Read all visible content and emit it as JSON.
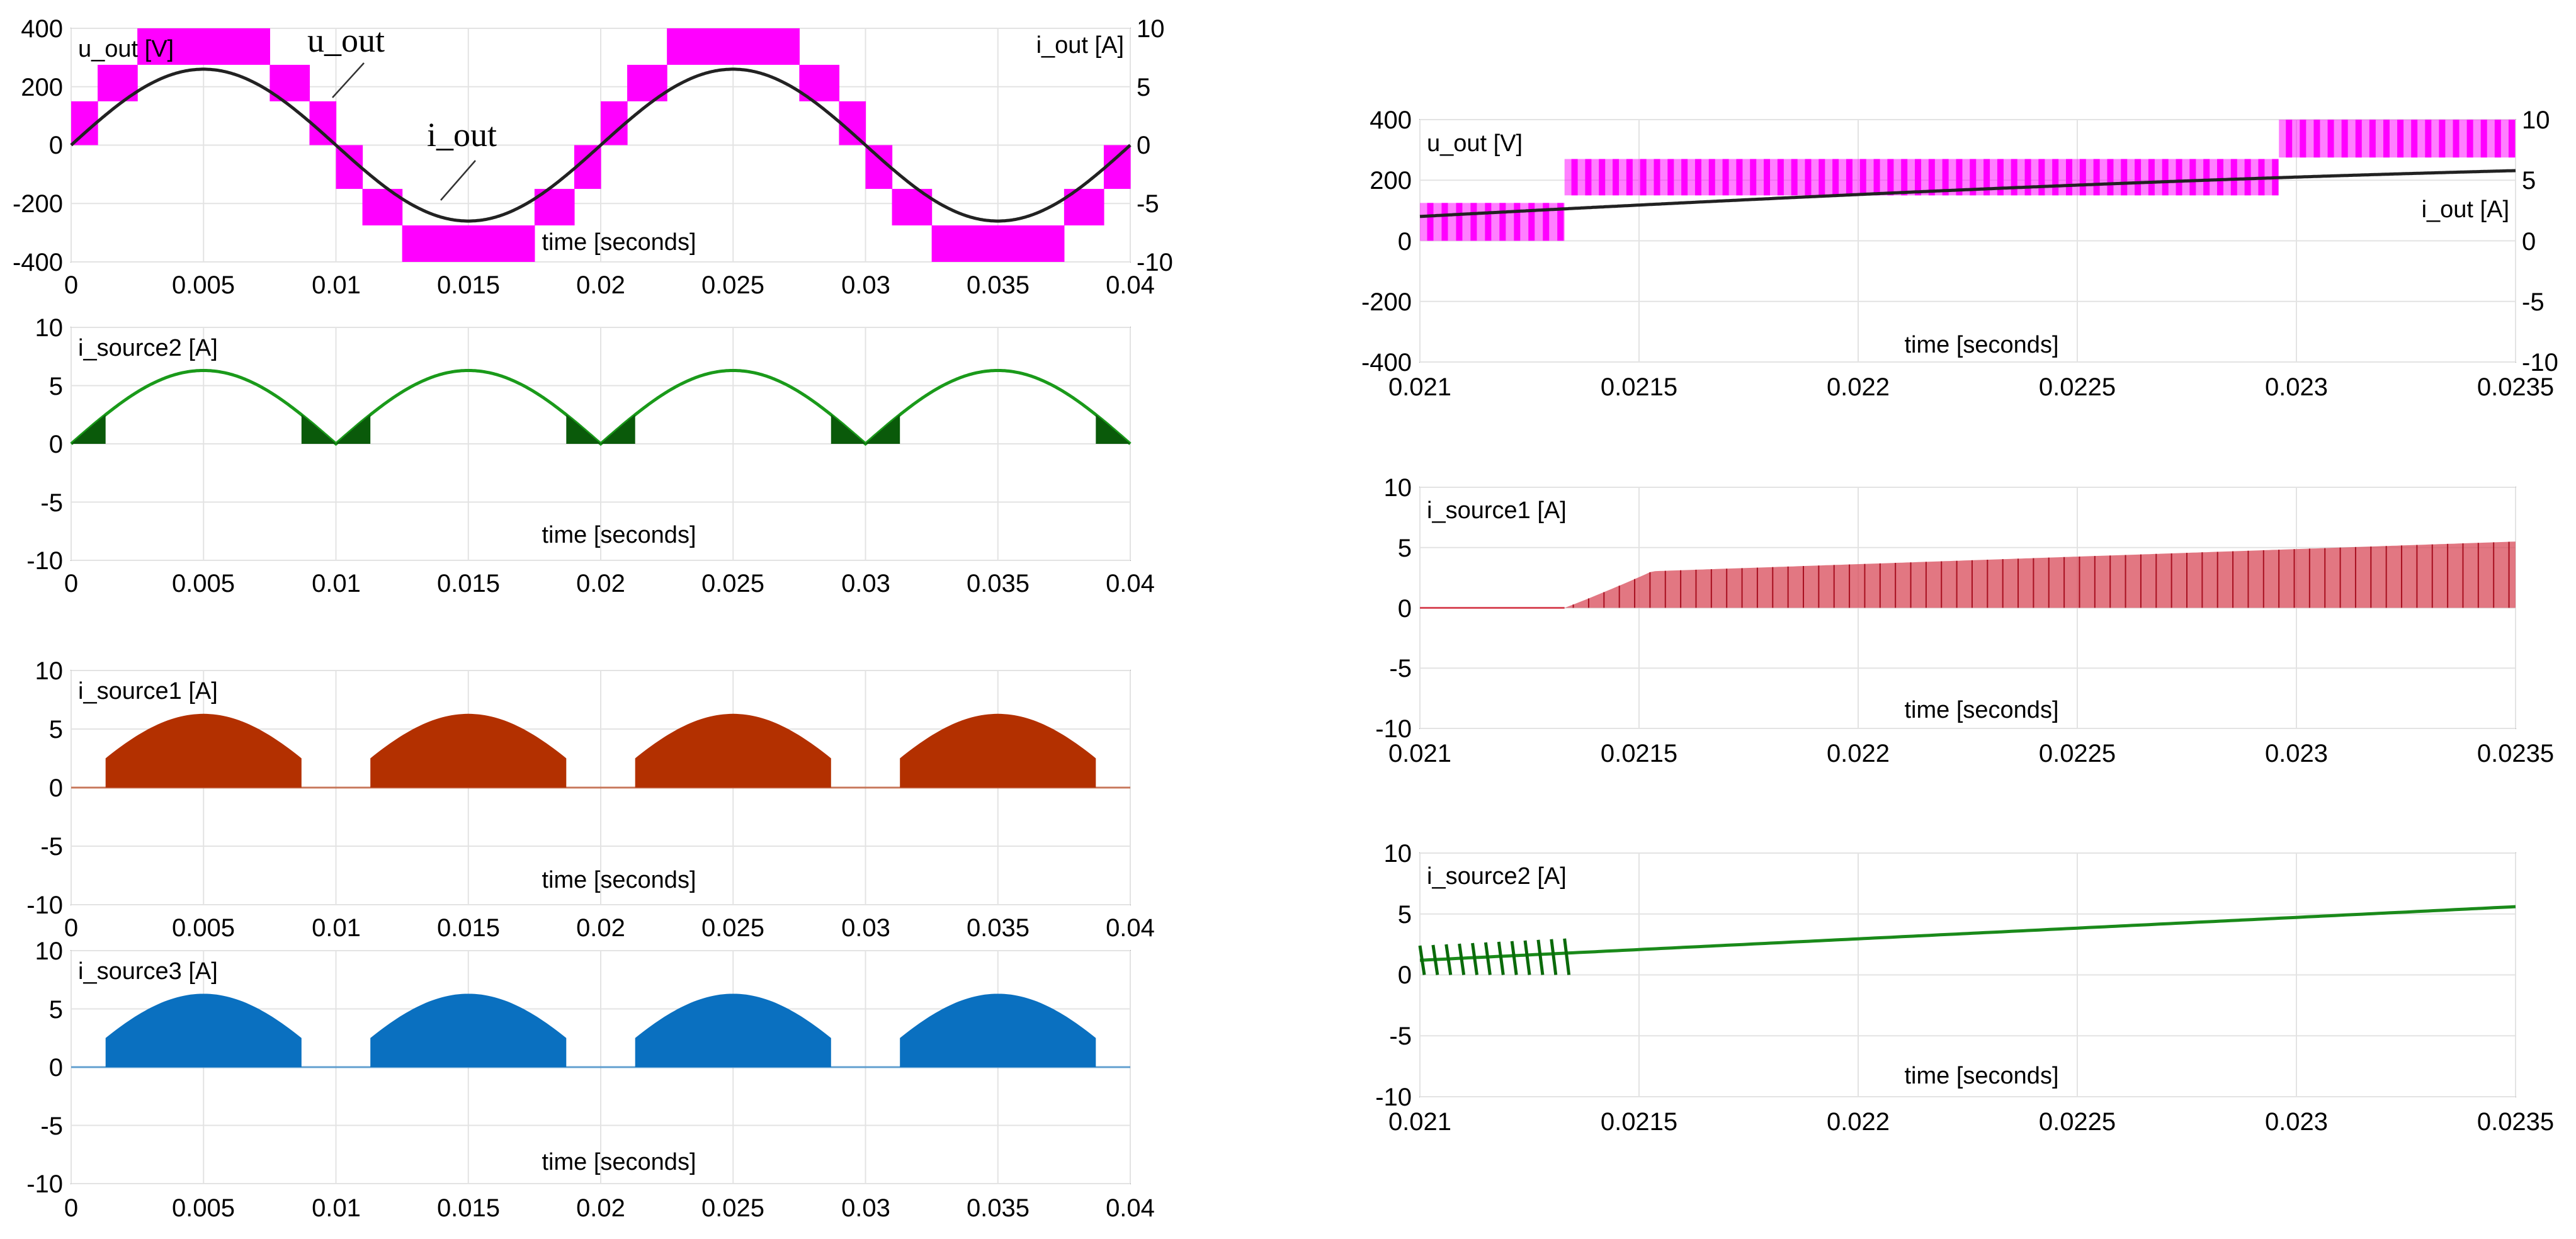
{
  "chart_data": [
    {
      "id": "p1",
      "type": "line",
      "x_domain": [
        0,
        0.04
      ],
      "ylim": [
        -400,
        400
      ],
      "yticks": [
        -400,
        -200,
        0,
        200,
        400
      ],
      "ylim_right": [
        -10,
        10
      ],
      "yticks_right": [
        -10,
        -5,
        0,
        5,
        10
      ],
      "xticks": [
        "0",
        "0.005",
        "0.01",
        "0.015",
        "0.02",
        "0.025",
        "0.03",
        "0.035",
        "0.04"
      ],
      "ylabel": "u_out [V]",
      "ylabel_right": "i_out [A]",
      "xlabel": "time [seconds]",
      "annotations": [
        "u_out",
        "i_out"
      ],
      "series": [
        {
          "name": "u_out",
          "color": "#ff00ff",
          "style": "staircase",
          "frequency_hz": 50,
          "levels_v": [
            -400,
            -275,
            -150,
            0,
            150,
            275,
            400
          ]
        },
        {
          "name": "i_out",
          "color": "#222222",
          "style": "sine",
          "amplitude_a": 6.5,
          "frequency_hz": 50
        }
      ]
    },
    {
      "id": "p2",
      "type": "line",
      "x_domain": [
        0,
        0.04
      ],
      "ylim": [
        -10,
        10
      ],
      "yticks": [
        -10,
        -5,
        0,
        5,
        10
      ],
      "xticks": [
        "0",
        "0.005",
        "0.01",
        "0.015",
        "0.02",
        "0.025",
        "0.03",
        "0.035",
        "0.04"
      ],
      "ylabel": "i_source2 [A]",
      "xlabel": "time [seconds]",
      "series": [
        {
          "name": "i_source2",
          "color": "#1a9a1a",
          "style": "abs_sine",
          "amplitude_a": 6.3,
          "frequency_hz": 50
        }
      ]
    },
    {
      "id": "p3",
      "type": "area",
      "x_domain": [
        0,
        0.04
      ],
      "ylim": [
        -10,
        10
      ],
      "yticks": [
        -10,
        -5,
        0,
        5,
        10
      ],
      "xticks": [
        "0",
        "0.005",
        "0.01",
        "0.015",
        "0.02",
        "0.025",
        "0.03",
        "0.035",
        "0.04"
      ],
      "ylabel": "i_source1 [A]",
      "xlabel": "time [seconds]",
      "series": [
        {
          "name": "i_source1",
          "color": "#b33000",
          "style": "abs_sine_window",
          "amplitude_a": 6.3,
          "frequency_hz": 50,
          "window_start_s": 0.0013,
          "window_end_s": 0.0087
        }
      ]
    },
    {
      "id": "p4",
      "type": "area",
      "x_domain": [
        0,
        0.04
      ],
      "ylim": [
        -10,
        10
      ],
      "yticks": [
        -10,
        -5,
        0,
        5,
        10
      ],
      "xticks": [
        "0",
        "0.005",
        "0.01",
        "0.015",
        "0.02",
        "0.025",
        "0.03",
        "0.035",
        "0.04"
      ],
      "ylabel": "i_source3 [A]",
      "xlabel": "time [seconds]",
      "series": [
        {
          "name": "i_source3",
          "color": "#0a70c0",
          "style": "abs_sine_window",
          "amplitude_a": 6.3,
          "frequency_hz": 50,
          "window_start_s": 0.0013,
          "window_end_s": 0.0087
        }
      ]
    },
    {
      "id": "p5",
      "type": "line",
      "x_domain": [
        0.021,
        0.0235
      ],
      "ylim": [
        -400,
        400
      ],
      "yticks": [
        -400,
        -200,
        0,
        200,
        400
      ],
      "ylim_right": [
        -10,
        10
      ],
      "yticks_right": [
        -10,
        -5,
        0,
        5,
        10
      ],
      "xticks": [
        "0.021",
        "0.0215",
        "0.022",
        "0.0225",
        "0.023",
        "0.0235"
      ],
      "ylabel": "u_out [V]",
      "ylabel_right": "i_out [A]",
      "xlabel": "time [seconds]",
      "series": [
        {
          "name": "u_out",
          "color": "#ff00ff",
          "style": "pwm_steps",
          "steps": [
            {
              "t0": 0.021,
              "t1": 0.02133,
              "lo": 0,
              "hi": 125
            },
            {
              "t0": 0.02133,
              "t1": 0.02296,
              "lo": 150,
              "hi": 270
            },
            {
              "t0": 0.02296,
              "t1": 0.0235,
              "lo": 275,
              "hi": 400
            }
          ]
        },
        {
          "name": "i_out",
          "color": "#222222",
          "style": "sine",
          "amplitude_a": 6.5,
          "frequency_hz": 50
        }
      ]
    },
    {
      "id": "p6",
      "type": "area",
      "x_domain": [
        0.021,
        0.0235
      ],
      "ylim": [
        -10,
        10
      ],
      "yticks": [
        -10,
        -5,
        0,
        5,
        10
      ],
      "xticks": [
        "0.021",
        "0.0215",
        "0.022",
        "0.0225",
        "0.023",
        "0.0235"
      ],
      "ylabel": "i_source1 [A]",
      "xlabel": "time [seconds]",
      "series": [
        {
          "name": "i_source1",
          "color": "#d84a58",
          "style": "pwm_ramp",
          "start_s": 0.02133,
          "value_at_0_0215": 3.0,
          "value_at_0_0235": 5.5
        }
      ]
    },
    {
      "id": "p7",
      "type": "line",
      "x_domain": [
        0.021,
        0.0235
      ],
      "ylim": [
        -10,
        10
      ],
      "yticks": [
        -10,
        -5,
        0,
        5,
        10
      ],
      "xticks": [
        "0.021",
        "0.0215",
        "0.022",
        "0.0225",
        "0.023",
        "0.0235"
      ],
      "ylabel": "i_source2 [A]",
      "xlabel": "time [seconds]",
      "series": [
        {
          "name": "i_source2",
          "color": "#1a8a1a",
          "style": "ramp_with_ripple",
          "ripple_end_s": 0.02133,
          "value_at_0_021": 1.2,
          "value_at_0_0235": 5.6
        }
      ]
    }
  ]
}
